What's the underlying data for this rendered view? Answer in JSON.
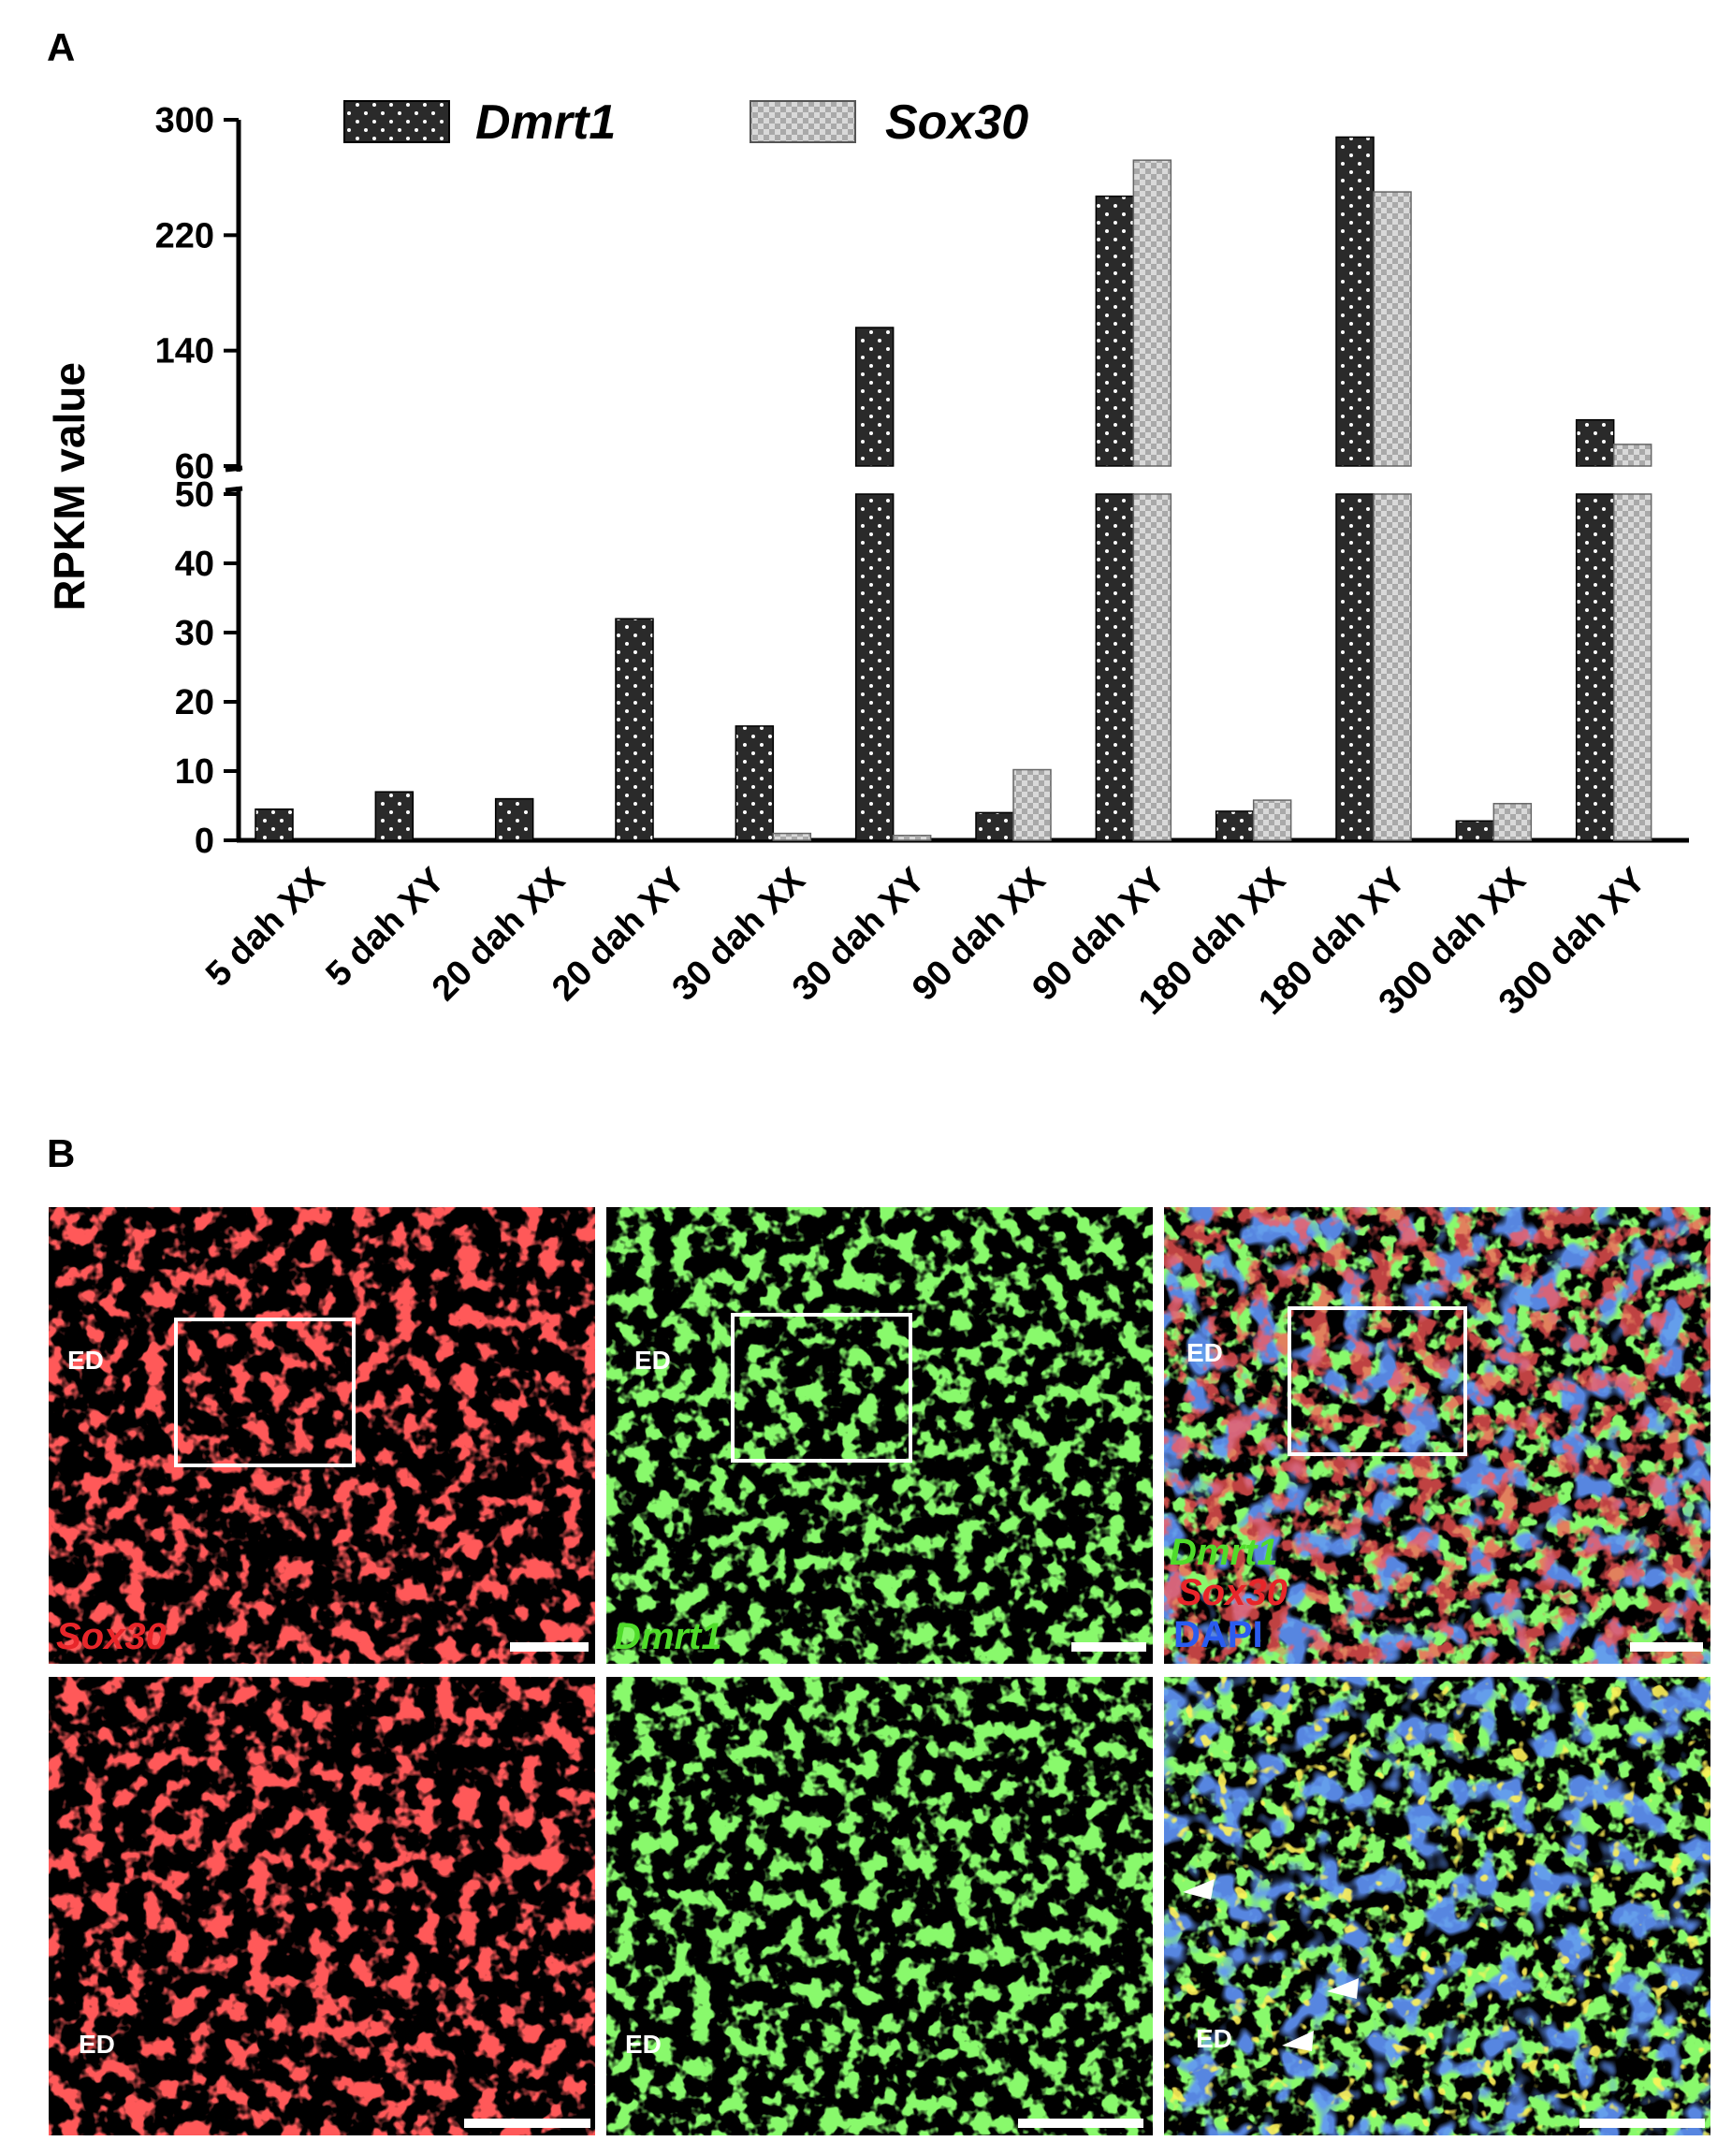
{
  "figure": {
    "panel_a_label": "A",
    "panel_b_label": "B"
  },
  "chart_data": {
    "type": "bar",
    "ylabel": "RPKM value",
    "xlabel": "",
    "title": "",
    "axis_break": {
      "lower_range": [
        0,
        50
      ],
      "upper_range": [
        60,
        300
      ]
    },
    "lower_ticks": [
      "0",
      "10",
      "20",
      "30",
      "40",
      "50"
    ],
    "upper_ticks": [
      "60",
      "140",
      "220",
      "300"
    ],
    "categories": [
      "5 dah XX",
      "5 dah XY",
      "20 dah XX",
      "20 dah XY",
      "30 dah XX",
      "30 dah XY",
      "90 dah XX",
      "90 dah XY",
      "180 dah XX",
      "180 dah XY",
      "300 dah XX",
      "300 dah XY"
    ],
    "series": [
      {
        "name": "Dmrt1",
        "values": [
          4.5,
          7,
          6,
          32,
          16.5,
          156,
          4,
          247,
          4.2,
          288,
          2.8,
          92
        ],
        "color": "#2a2a2a",
        "pattern": "dotted"
      },
      {
        "name": "Sox30",
        "values": [
          0,
          0,
          0,
          0,
          1,
          0.7,
          10.2,
          272,
          5.8,
          250,
          5.3,
          75
        ],
        "color": "#c8c8c8",
        "pattern": "checkered"
      }
    ],
    "legend_position": "top",
    "grid": false
  },
  "micrographs": {
    "row1": [
      {
        "label": "Sox30",
        "label_color": "#e8262a",
        "ed": "ED",
        "base_color": "#ff2020"
      },
      {
        "label": "Dmrt1",
        "label_color": "#4fdc2a",
        "ed": "ED",
        "base_color": "#3fe62c"
      },
      {
        "merge_labels": [
          "Dmrt1",
          "Sox30",
          "DAPI"
        ],
        "merge_colors": [
          "#4fdc2a",
          "#e8262a",
          "#2a5cf0"
        ],
        "ed": "ED"
      }
    ],
    "row2": [
      {
        "ed": "ED"
      },
      {
        "ed": "ED"
      },
      {
        "ed": "ED"
      }
    ]
  }
}
